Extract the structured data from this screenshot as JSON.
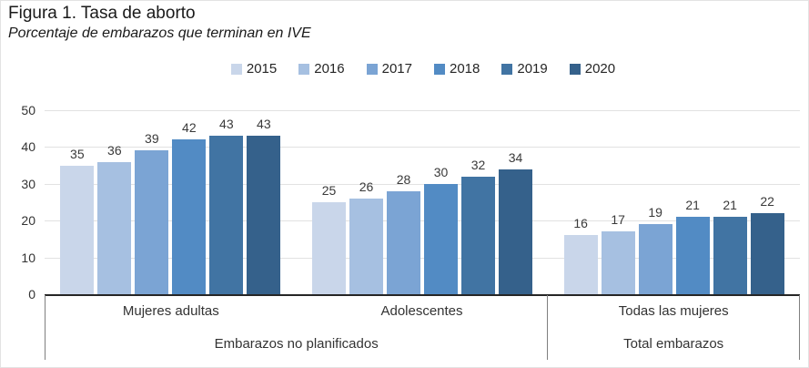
{
  "figure": {
    "title": "Figura 1. Tasa de aborto",
    "subtitle": "Porcentaje de embarazos que terminan en IVE"
  },
  "chart_data": {
    "type": "bar",
    "title": "Figura 1. Tasa de aborto",
    "subtitle": "Porcentaje de embarazos que terminan en IVE",
    "legend_position": "top",
    "legend_entries": [
      "2015",
      "2016",
      "2017",
      "2018",
      "2019",
      "2020"
    ],
    "grid": true,
    "ylim": [
      0,
      50
    ],
    "yticks": [
      0,
      10,
      20,
      30,
      40,
      50
    ],
    "categories": [
      "Mujeres adultas",
      "Adolescentes",
      "Todas las mujeres"
    ],
    "super_categories": [
      {
        "label": "Embarazos no planificados",
        "span": 2
      },
      {
        "label": "Total embarazos",
        "span": 1
      }
    ],
    "series": [
      {
        "name": "2015",
        "color": "#C9D6EA",
        "values": [
          35,
          25,
          16
        ]
      },
      {
        "name": "2016",
        "color": "#A6C0E1",
        "values": [
          36,
          26,
          17
        ]
      },
      {
        "name": "2017",
        "color": "#7BA4D4",
        "values": [
          39,
          28,
          19
        ]
      },
      {
        "name": "2018",
        "color": "#528BC4",
        "values": [
          42,
          30,
          21
        ]
      },
      {
        "name": "2019",
        "color": "#4174A3",
        "values": [
          43,
          32,
          21
        ]
      },
      {
        "name": "2020",
        "color": "#35618B",
        "values": [
          43,
          34,
          22
        ]
      }
    ],
    "bar_labels_shown": true,
    "colors": {
      "axis": "#262626",
      "divider": "#7f7f7f",
      "gridline": "#e2e2e2",
      "bar_label": "#3a3a3a"
    }
  }
}
